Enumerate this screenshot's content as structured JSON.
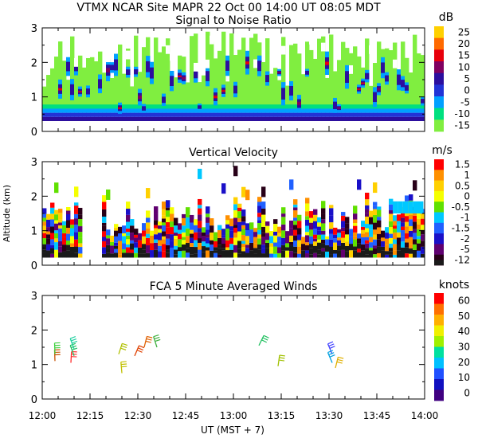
{
  "header": {
    "title": "VTMX  NCAR Site  MAPR 22 Oct 00  14:00 UT  08:05  MDT"
  },
  "time_axis": {
    "ticks": [
      "12:00",
      "12:15",
      "12:30",
      "12:45",
      "13:00",
      "13:15",
      "13:30",
      "13:45",
      "14:00"
    ],
    "label": "UT  (MST + 7)"
  },
  "shared": {
    "ylabel": "Altitude (km)",
    "yticks": [
      "0",
      "1",
      "2",
      "3"
    ]
  },
  "chart_data": [
    {
      "type": "heatmap",
      "title": "Signal to Noise Ratio",
      "units": "dB",
      "ylim": [
        0,
        3
      ],
      "xlim": [
        "12:00",
        "14:00"
      ],
      "colorbar": {
        "labels": [
          "25",
          "20",
          "15",
          "10",
          "5",
          "0",
          "-5",
          "-10",
          "-15"
        ],
        "colors": [
          "#ffd000",
          "#ff6a00",
          "#e8000b",
          "#800060",
          "#2c0e9e",
          "#2233d6",
          "#00a0ff",
          "#00e07f",
          "#80ee40"
        ]
      },
      "observations": {
        "bottom_km": 0.3,
        "top_km_range": [
          1.3,
          3.0
        ],
        "core_colors": "-5 to 15 dB below 1.8 km"
      }
    },
    {
      "type": "heatmap",
      "title": "Vertical Velocity",
      "units": "m/s",
      "ylim": [
        0,
        3
      ],
      "xlim": [
        "12:00",
        "14:00"
      ],
      "colorbar": {
        "labels": [
          "1.5",
          "1",
          "0.5",
          "0",
          "-0.5",
          "-1",
          "-1.5",
          "-2",
          "-5",
          "-12"
        ],
        "colors": [
          "#ff0000",
          "#ff9000",
          "#ffd000",
          "#f5ff00",
          "#60e000",
          "#00c8ff",
          "#2060ff",
          "#1a10c8",
          "#600070",
          "#280018"
        ],
        "bottom_color": "#1a1a1a"
      },
      "observations": {
        "bottom_km": 0.25,
        "top_km_range": [
          0.8,
          2.9
        ]
      }
    },
    {
      "type": "scatter",
      "title": "FCA 5 Minute Averaged Winds",
      "units": "knots",
      "ylim": [
        0,
        3
      ],
      "xlim": [
        "12:00",
        "14:00"
      ],
      "colorbar": {
        "labels": [
          "60",
          "50",
          "40",
          "30",
          "20",
          "10",
          "0"
        ],
        "colors": [
          "#ff0000",
          "#ff7000",
          "#ffb000",
          "#f0f000",
          "#a0f000",
          "#00e0a0",
          "#00c0ff",
          "#2050ff",
          "#1010c0",
          "#400080"
        ]
      },
      "barbs": [
        {
          "time_min": 4,
          "alt_km": 1.1,
          "color": "#c85000"
        },
        {
          "time_min": 4,
          "alt_km": 1.3,
          "color": "#40d040"
        },
        {
          "time_min": 9,
          "alt_km": 1.05,
          "color": "#ff3030"
        },
        {
          "time_min": 10,
          "alt_km": 1.25,
          "color": "#20c060"
        },
        {
          "time_min": 10,
          "alt_km": 1.45,
          "color": "#20d0a0"
        },
        {
          "time_min": 24,
          "alt_km": 1.3,
          "color": "#b0c000"
        },
        {
          "time_min": 25,
          "alt_km": 0.75,
          "color": "#c0c000"
        },
        {
          "time_min": 29,
          "alt_km": 1.25,
          "color": "#e04000"
        },
        {
          "time_min": 32,
          "alt_km": 1.5,
          "color": "#e06000"
        },
        {
          "time_min": 36,
          "alt_km": 1.5,
          "color": "#40b040"
        },
        {
          "time_min": 68,
          "alt_km": 1.55,
          "color": "#20c060"
        },
        {
          "time_min": 74,
          "alt_km": 0.95,
          "color": "#a0c000"
        },
        {
          "time_min": 91,
          "alt_km": 1.3,
          "color": "#4040ff"
        },
        {
          "time_min": 91,
          "alt_km": 1.05,
          "color": "#00a0e0"
        },
        {
          "time_min": 92,
          "alt_km": 0.9,
          "color": "#e0b000"
        }
      ]
    }
  ]
}
